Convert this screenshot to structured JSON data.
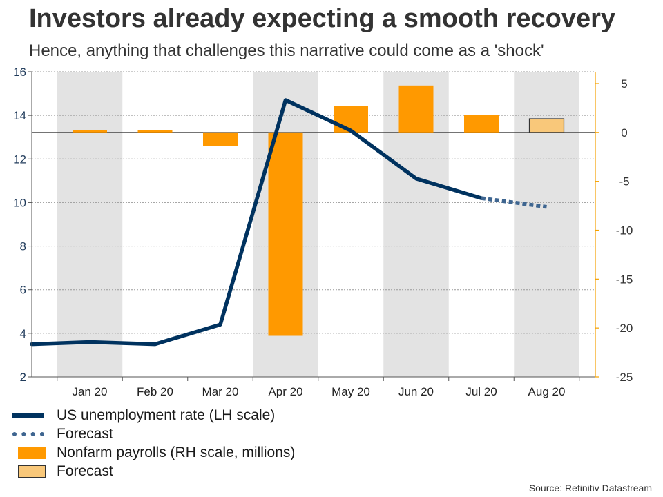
{
  "title": "Investors already expecting a smooth recovery",
  "subtitle": "Hence, anything that challenges this narrative could come as a 'shock'",
  "source": "Source: Refinitiv Datastream",
  "colors": {
    "unemployment": "#00325f",
    "unemployment_forecast": "#3e6590",
    "payrolls": "#ff9900",
    "payrolls_forecast": "#f9c87a",
    "shade": "#e3e3e3",
    "right_axis": "#f5a100"
  },
  "legend": [
    {
      "label": "US unemployment rate (LH scale)",
      "style": "line"
    },
    {
      "label": "Forecast",
      "style": "dashed-line"
    },
    {
      "label": "Nonfarm payrolls (RH scale, millions)",
      "style": "bar"
    },
    {
      "label": "Forecast",
      "style": "bar-forecast"
    }
  ],
  "chart_data": {
    "type": "bar+line",
    "categories": [
      "Jan 20",
      "Feb 20",
      "Mar 20",
      "Apr 20",
      "May 20",
      "Jun 20",
      "Jul 20",
      "Aug 20"
    ],
    "left_axis": {
      "min": 2,
      "max": 16,
      "ticks": [
        2,
        4,
        6,
        8,
        10,
        12,
        14,
        16
      ]
    },
    "right_axis": {
      "min": -25,
      "max": 6.2,
      "ticks": [
        5,
        0,
        -5,
        -10,
        -15,
        -20,
        -25
      ]
    },
    "shaded_categories": [
      "Jan 20",
      "Apr 20",
      "Jun 20",
      "Aug 20"
    ],
    "series": [
      {
        "name": "US unemployment rate (LH scale)",
        "type": "line",
        "axis": "left",
        "points": [
          {
            "x": "Dec 19",
            "y": 3.5
          },
          {
            "x": "Jan 20",
            "y": 3.6
          },
          {
            "x": "Feb 20",
            "y": 3.5
          },
          {
            "x": "Mar 20",
            "y": 4.4
          },
          {
            "x": "Apr 20",
            "y": 14.7
          },
          {
            "x": "May 20",
            "y": 13.3
          },
          {
            "x": "Jun 20",
            "y": 11.1
          },
          {
            "x": "Jul 20",
            "y": 10.2
          }
        ]
      },
      {
        "name": "Forecast",
        "type": "line-dashed",
        "axis": "left",
        "points": [
          {
            "x": "Jul 20",
            "y": 10.2
          },
          {
            "x": "Aug 20",
            "y": 9.8
          }
        ]
      },
      {
        "name": "Nonfarm payrolls (RH scale, millions)",
        "type": "bar",
        "axis": "right",
        "values": [
          0.2,
          0.2,
          -1.4,
          -20.8,
          2.7,
          4.8,
          1.8,
          null
        ]
      },
      {
        "name": "Forecast",
        "type": "bar-forecast",
        "axis": "right",
        "values": [
          null,
          null,
          null,
          null,
          null,
          null,
          null,
          1.4
        ]
      }
    ]
  }
}
